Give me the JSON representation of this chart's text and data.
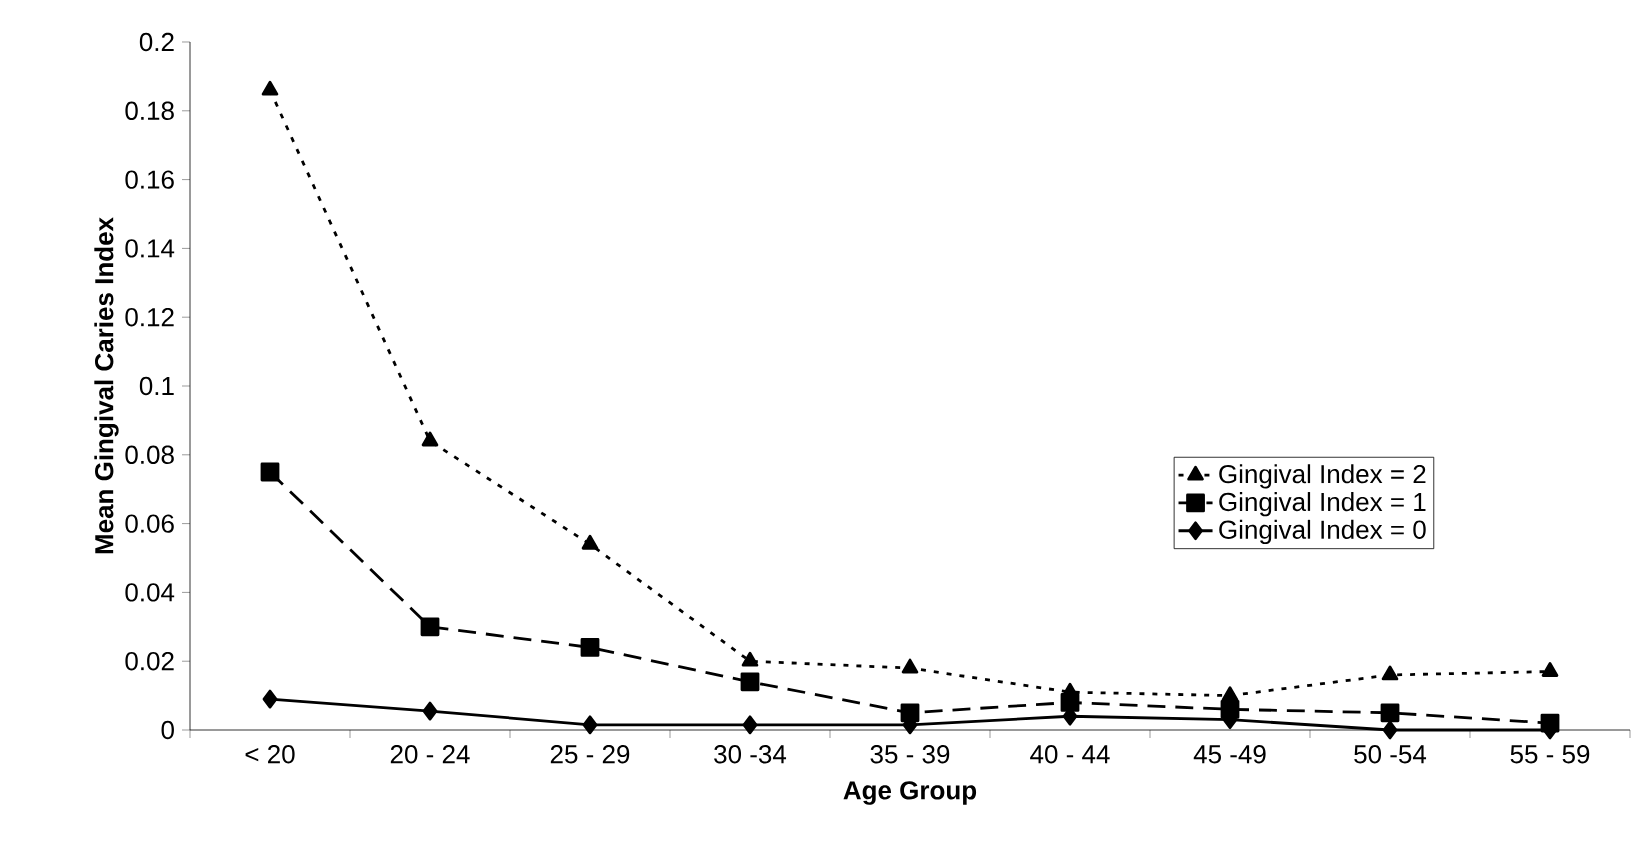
{
  "chart_data": {
    "type": "line",
    "xlabel": "Age Group",
    "ylabel": "Mean Gingival Caries Index",
    "categories": [
      "< 20",
      "20 - 24",
      "25 - 29",
      "30 -34",
      "35 - 39",
      "40 - 44",
      "45 -49",
      "50 -54",
      "55 - 59"
    ],
    "series": [
      {
        "name": "Gingival Index = 2",
        "color": "#000000",
        "marker": "triangle",
        "line_style": "dotted",
        "values": [
          0.186,
          0.084,
          0.054,
          0.02,
          0.018,
          0.011,
          0.01,
          0.016,
          0.017
        ]
      },
      {
        "name": "Gingival Index = 1",
        "color": "#000000",
        "marker": "square",
        "line_style": "dashed",
        "values": [
          0.075,
          0.03,
          0.024,
          0.014,
          0.005,
          0.008,
          0.006,
          0.005,
          0.002
        ]
      },
      {
        "name": "Gingival Index = 0",
        "color": "#000000",
        "marker": "diamond",
        "line_style": "solid",
        "values": [
          0.009,
          0.0055,
          0.0015,
          0.0015,
          0.0015,
          0.004,
          0.003,
          0.0,
          0.0
        ]
      }
    ],
    "ylim": [
      0,
      0.2
    ],
    "yticks": [
      0,
      0.02,
      0.04,
      0.06,
      0.08,
      0.1,
      0.12,
      0.14,
      0.16,
      0.18,
      0.2
    ],
    "grid": false,
    "legend": "right"
  }
}
